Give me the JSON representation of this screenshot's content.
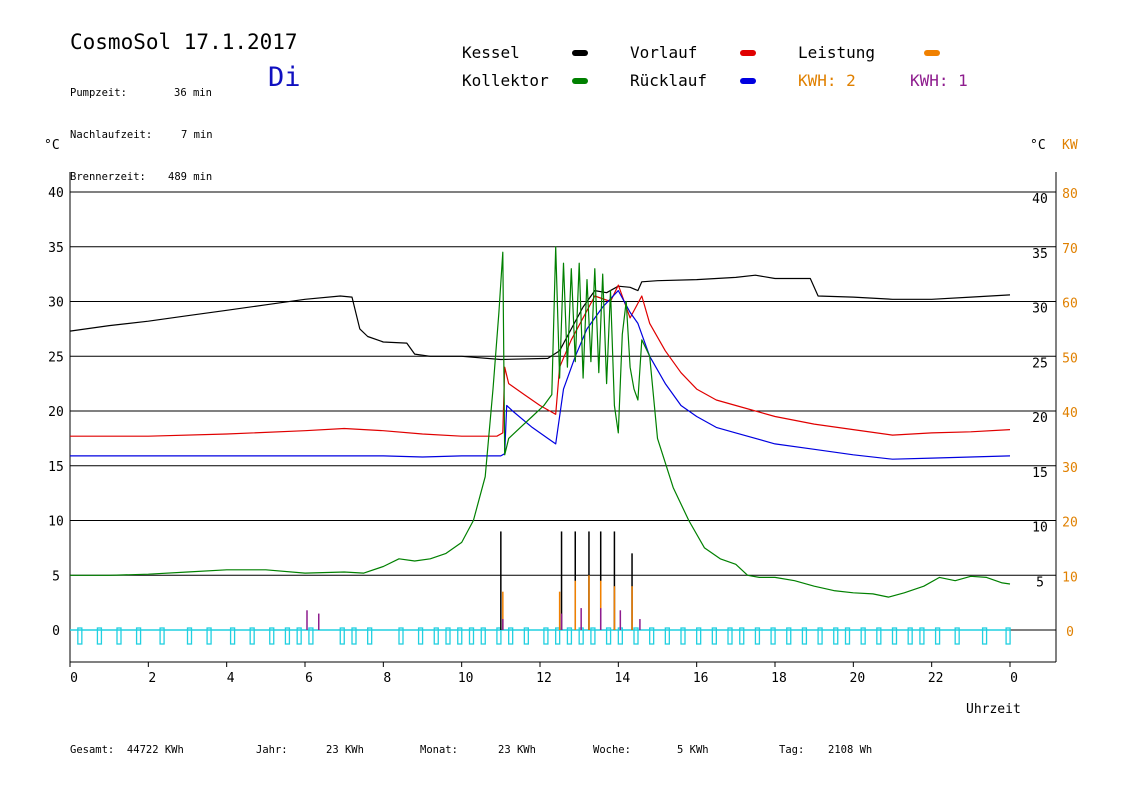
{
  "header": {
    "title": "CosmoSol 17.1.2017",
    "day": "Di",
    "stats": [
      {
        "label": "Pumpzeit:",
        "value": "36 min"
      },
      {
        "label": "Nachlaufzeit:",
        "value": "7 min"
      },
      {
        "label": "Brennerzeit:",
        "value": "489 min"
      }
    ]
  },
  "legend": {
    "items": [
      {
        "label": "Kessel",
        "color": "#000000"
      },
      {
        "label": "Vorlauf",
        "color": "#e00000"
      },
      {
        "label": "Leistung",
        "color": "#f08000"
      },
      {
        "label": "Kollektor",
        "color": "#008000"
      },
      {
        "label": "Rücklauf",
        "color": "#0000e0"
      }
    ],
    "kwh2": "KWH: 2",
    "kwh1": "KWH: 1",
    "kwh2_color": "#e08000",
    "kwh1_color": "#8e1c8e"
  },
  "axes": {
    "left_unit": "°C",
    "right_unit_c": "°C",
    "right_unit_kw": "KW",
    "xlabel": "Uhrzeit"
  },
  "footer": [
    {
      "label": "Gesamt:",
      "value": "44722 KWh"
    },
    {
      "label": "Jahr:",
      "value": "23 KWh"
    },
    {
      "label": "Monat:",
      "value": "23 KWh"
    },
    {
      "label": "Woche:",
      "value": "5 KWh"
    },
    {
      "label": "Tag:",
      "value": "2108 Wh"
    }
  ],
  "chart_data": {
    "type": "line",
    "xlabel": "Uhrzeit",
    "ylabel": "°C",
    "ylabel_right": "KW",
    "xlim": [
      0,
      24
    ],
    "ylim": [
      0,
      40
    ],
    "ylim_right": [
      0,
      80
    ],
    "x_ticks": [
      "0",
      "2",
      "4",
      "6",
      "8",
      "10",
      "12",
      "14",
      "16",
      "18",
      "20",
      "22",
      "0"
    ],
    "y_ticks": [
      0,
      5,
      10,
      15,
      20,
      25,
      30,
      35,
      40
    ],
    "y_ticks_right_c": [
      5,
      10,
      15,
      20,
      25,
      30,
      35,
      40
    ],
    "y_ticks_right_kw": [
      0,
      10,
      20,
      30,
      40,
      50,
      60,
      70,
      80
    ],
    "grid": true,
    "series": [
      {
        "name": "Kessel",
        "color": "#000000",
        "x": [
          0,
          1,
          2,
          3,
          4,
          5,
          6,
          6.9,
          7.2,
          7.4,
          7.6,
          8,
          8.6,
          8.8,
          9.2,
          10,
          11,
          12.2,
          12.5,
          12.8,
          13.1,
          13.4,
          13.7,
          14,
          14.3,
          14.5,
          14.6,
          15,
          16,
          17,
          17.5,
          18,
          18.5,
          18.9,
          19.1,
          20,
          21,
          22,
          23,
          24
        ],
        "y": [
          27.3,
          27.8,
          28.2,
          28.7,
          29.2,
          29.7,
          30.2,
          30.5,
          30.4,
          27.5,
          26.8,
          26.3,
          26.2,
          25.2,
          25.0,
          25.0,
          24.7,
          24.8,
          25.5,
          27.5,
          29.5,
          31.0,
          30.8,
          31.4,
          31.3,
          31.0,
          31.8,
          31.9,
          32.0,
          32.2,
          32.4,
          32.1,
          32.1,
          32.1,
          30.5,
          30.4,
          30.2,
          30.2,
          30.4,
          30.6
        ]
      },
      {
        "name": "Vorlauf",
        "color": "#e00000",
        "x": [
          0,
          2,
          4,
          6,
          7,
          8,
          9,
          10,
          10.9,
          11.05,
          11.1,
          11.2,
          11.6,
          12,
          12.3,
          12.4,
          12.5,
          12.8,
          13.1,
          13.4,
          13.8,
          14,
          14.3,
          14.6,
          14.8,
          15.2,
          15.6,
          16,
          16.5,
          17,
          18,
          19,
          20,
          21,
          22,
          23,
          24
        ],
        "y": [
          17.7,
          17.7,
          17.9,
          18.2,
          18.4,
          18.2,
          17.9,
          17.7,
          17.7,
          18.0,
          24.0,
          22.5,
          21.5,
          20.5,
          19.9,
          19.7,
          24.0,
          26.5,
          28.5,
          30.5,
          30.0,
          31.5,
          28.5,
          30.5,
          28.0,
          25.5,
          23.5,
          22.0,
          21.0,
          20.5,
          19.5,
          18.8,
          18.3,
          17.8,
          18.0,
          18.1,
          18.3
        ]
      },
      {
        "name": "Rücklauf",
        "color": "#0000e0",
        "x": [
          0,
          2,
          4,
          6,
          8,
          9,
          10,
          11,
          11.1,
          11.15,
          11.3,
          11.8,
          12.2,
          12.4,
          12.6,
          12.9,
          13.2,
          13.6,
          14,
          14.3,
          14.5,
          14.8,
          15.2,
          15.6,
          16,
          16.5,
          17,
          18,
          19,
          20,
          21,
          22,
          23,
          24
        ],
        "y": [
          15.9,
          15.9,
          15.9,
          15.9,
          15.9,
          15.8,
          15.9,
          15.9,
          16.1,
          20.5,
          20.0,
          18.5,
          17.5,
          17.0,
          22.0,
          25.0,
          27.5,
          29.5,
          31.0,
          29.0,
          28.0,
          25.0,
          22.5,
          20.5,
          19.5,
          18.5,
          18.0,
          17.0,
          16.5,
          16.0,
          15.6,
          15.7,
          15.8,
          15.9
        ]
      },
      {
        "name": "Kollektor",
        "color": "#008000",
        "x": [
          0,
          1,
          2,
          3,
          4,
          5,
          6,
          7,
          7.5,
          8,
          8.4,
          8.8,
          9.2,
          9.6,
          10,
          10.3,
          10.6,
          10.8,
          10.95,
          11.05,
          11.1,
          11.2,
          11.5,
          11.8,
          12.1,
          12.3,
          12.4,
          12.5,
          12.6,
          12.7,
          12.8,
          12.9,
          13.0,
          13.1,
          13.2,
          13.3,
          13.4,
          13.5,
          13.6,
          13.7,
          13.8,
          13.9,
          14.0,
          14.1,
          14.2,
          14.3,
          14.4,
          14.5,
          14.6,
          14.8,
          15.0,
          15.4,
          15.8,
          16.2,
          16.6,
          17.0,
          17.3,
          17.6,
          18.0,
          18.5,
          19.0,
          19.5,
          20.0,
          20.5,
          20.9,
          21.3,
          21.8,
          22.2,
          22.6,
          23.0,
          23.4,
          23.8,
          24.0
        ],
        "y": [
          5.0,
          5.0,
          5.1,
          5.3,
          5.5,
          5.5,
          5.2,
          5.3,
          5.2,
          5.8,
          6.5,
          6.3,
          6.5,
          7.0,
          8.0,
          10.0,
          14.0,
          22.0,
          29.0,
          34.5,
          16.0,
          17.5,
          18.5,
          19.5,
          20.5,
          21.5,
          35.0,
          23.0,
          33.5,
          24.0,
          33.0,
          24.5,
          33.5,
          23.0,
          32.0,
          24.5,
          33.0,
          23.5,
          32.5,
          22.5,
          31.0,
          20.5,
          18.0,
          27.0,
          30.0,
          24.0,
          22.0,
          21.0,
          26.5,
          25.0,
          17.5,
          13.0,
          10.0,
          7.5,
          6.5,
          6.0,
          5.0,
          4.8,
          4.8,
          4.5,
          4.0,
          3.6,
          3.4,
          3.3,
          3.0,
          3.4,
          4.0,
          4.8,
          4.5,
          4.9,
          4.8,
          4.3,
          4.2
        ]
      },
      {
        "name": "Leistung",
        "color": "#f08000",
        "axis": "right_kw",
        "x": [
          11.0,
          12.45,
          12.85,
          13.2,
          13.5,
          13.85,
          14.3
        ],
        "y": [
          7,
          7,
          9,
          10,
          9,
          8,
          8
        ]
      },
      {
        "name": "KWH: 1",
        "color": "#8e1c8e",
        "x": [
          6.0,
          6.3,
          11.0,
          12.5,
          13.0,
          13.5,
          14.0,
          14.5
        ],
        "y": [
          1.8,
          1.5,
          1.0,
          1.5,
          2.0,
          2.0,
          1.8,
          1.0
        ]
      }
    ],
    "pulses": {
      "name": "Pumpe",
      "color": "#20d0e0",
      "spikes": [
        {
          "x": 11.0,
          "y": 9.0,
          "color": "#000000"
        },
        {
          "x": 12.55,
          "y": 9.0,
          "color": "#000000"
        },
        {
          "x": 12.9,
          "y": 9.0,
          "color": "#000000"
        },
        {
          "x": 13.25,
          "y": 9.0,
          "color": "#000000"
        },
        {
          "x": 13.55,
          "y": 9.0,
          "color": "#000000"
        },
        {
          "x": 13.9,
          "y": 9.0,
          "color": "#000000"
        },
        {
          "x": 14.35,
          "y": 7.0,
          "color": "#000000"
        }
      ]
    }
  }
}
